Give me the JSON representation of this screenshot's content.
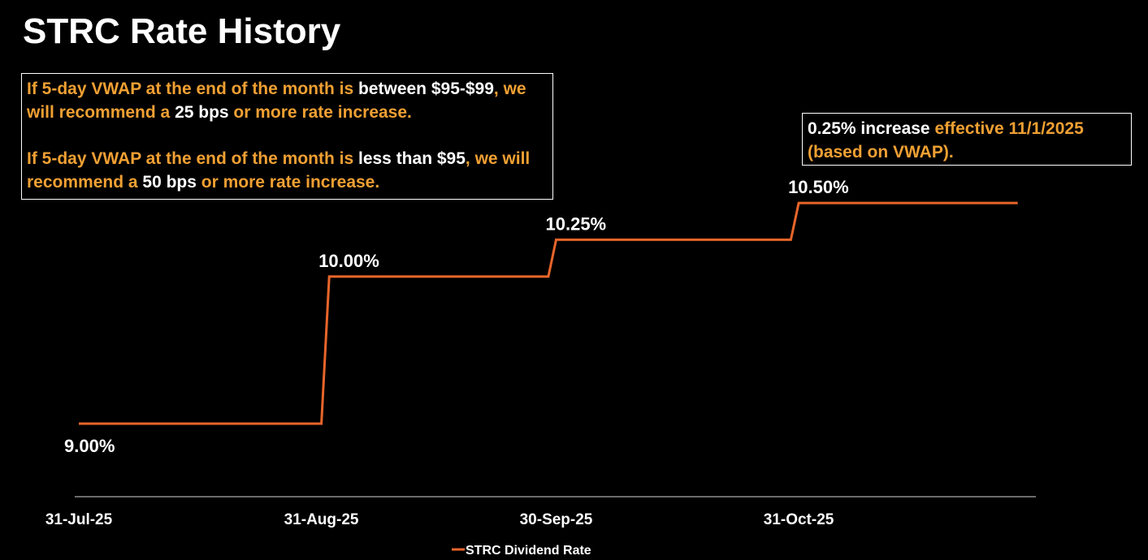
{
  "page_title": "STRC Rate History",
  "notes": {
    "left": {
      "para1": [
        {
          "text": "If 5-day VWAP at the end of the month is ",
          "color": "orange"
        },
        {
          "text": "between $95-$99",
          "color": "white"
        },
        {
          "text": ", we will recommend a ",
          "color": "orange"
        },
        {
          "text": "25 bps",
          "color": "white"
        },
        {
          "text": " or more rate increase.",
          "color": "orange"
        }
      ],
      "para2": [
        {
          "text": "If 5-day VWAP at the end of the month is ",
          "color": "orange"
        },
        {
          "text": "less than $95",
          "color": "white"
        },
        {
          "text": ",",
          "color": "orange"
        },
        {
          "text": " we will recommend a ",
          "color": "orange"
        },
        {
          "text": "50 bps",
          "color": "white"
        },
        {
          "text": " or more rate increase.",
          "color": "orange"
        }
      ]
    },
    "right": [
      {
        "text": "0.25% increase ",
        "color": "white"
      },
      {
        "text": "effective 11/1/2025 (based on VWAP).",
        "color": "orange"
      }
    ]
  },
  "colors": {
    "line": "#e8652a",
    "orange_text": "#f0a033",
    "white_text": "#ffffff",
    "background": "#000000"
  },
  "chart_data": {
    "type": "line",
    "step": true,
    "x_ticks": [
      "31-Jul-25",
      "31-Aug-25",
      "30-Sep-25",
      "31-Oct-25"
    ],
    "x_range": [
      "2025-07-31",
      "2025-11-30"
    ],
    "ylim": [
      9.0,
      10.6
    ],
    "series": [
      {
        "name": "STRC Dividend Rate",
        "points": [
          {
            "x": "2025-07-31",
            "y": 9.0
          },
          {
            "x": "2025-08-31",
            "y": 9.0
          },
          {
            "x": "2025-09-01",
            "y": 10.0
          },
          {
            "x": "2025-09-29",
            "y": 10.0
          },
          {
            "x": "2025-09-30",
            "y": 10.25
          },
          {
            "x": "2025-10-30",
            "y": 10.25
          },
          {
            "x": "2025-10-31",
            "y": 10.5
          },
          {
            "x": "2025-11-28",
            "y": 10.5
          }
        ]
      }
    ],
    "data_labels": [
      {
        "text": "9.00%",
        "x": "2025-07-31",
        "y": 9.0,
        "position": "below"
      },
      {
        "text": "10.00%",
        "x": "2025-09-01",
        "y": 10.0,
        "position": "above"
      },
      {
        "text": "10.25%",
        "x": "2025-09-30",
        "y": 10.25,
        "position": "above"
      },
      {
        "text": "10.50%",
        "x": "2025-10-31",
        "y": 10.5,
        "position": "above"
      }
    ],
    "legend": {
      "entries": [
        "STRC Dividend Rate"
      ],
      "placement": "bottom"
    },
    "grid": false
  }
}
